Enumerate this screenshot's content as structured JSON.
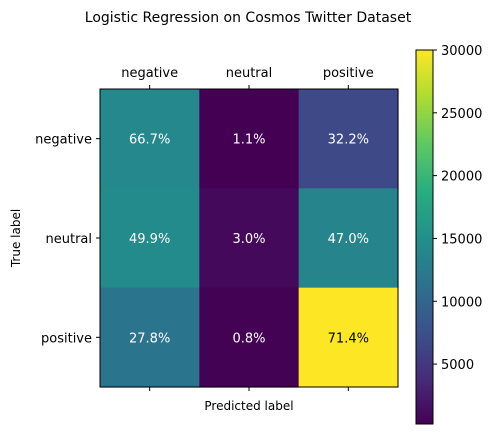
{
  "chart_data": {
    "type": "heatmap",
    "title": "Logistic Regression on Cosmos Twitter Dataset",
    "xlabel": "Predicted label",
    "ylabel": "True label",
    "x_categories": [
      "negative",
      "neutral",
      "positive"
    ],
    "y_categories": [
      "negative",
      "neutral",
      "positive"
    ],
    "cell_labels": [
      [
        "66.7%",
        "1.1%",
        "32.2%"
      ],
      [
        "49.9%",
        "3.0%",
        "47.0%"
      ],
      [
        "27.8%",
        "0.8%",
        "71.4%"
      ]
    ],
    "values": [
      [
        14000,
        230,
        6750
      ],
      [
        14400,
        870,
        13550
      ],
      [
        11650,
        340,
        30000
      ]
    ],
    "colormap": "viridis",
    "colorbar": {
      "range": [
        230,
        30000
      ],
      "ticks": [
        5000,
        10000,
        15000,
        20000,
        25000,
        30000
      ],
      "tick_labels": [
        "5000",
        "10000",
        "15000",
        "20000",
        "25000",
        "30000"
      ]
    },
    "x_tick_position": "top",
    "grid": false
  }
}
